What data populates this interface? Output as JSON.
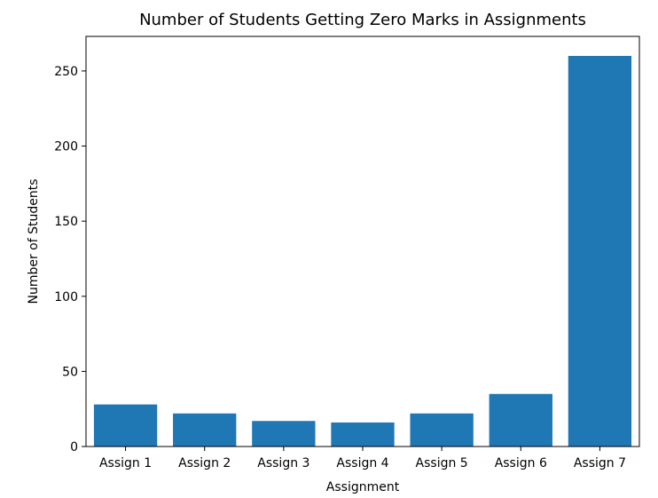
{
  "chart_data": {
    "type": "bar",
    "title": "Number of Students Getting Zero Marks in Assignments",
    "xlabel": "Assignment",
    "ylabel": "Number of Students",
    "categories": [
      "Assign 1",
      "Assign 2",
      "Assign 3",
      "Assign 4",
      "Assign 5",
      "Assign 6",
      "Assign 7"
    ],
    "values": [
      28,
      22,
      17,
      16,
      22,
      35,
      260
    ],
    "ylim": [
      0,
      273
    ],
    "yticks": [
      0,
      50,
      100,
      150,
      200,
      250
    ],
    "bar_color": "#1f77b4",
    "grid": false,
    "legend": false
  }
}
